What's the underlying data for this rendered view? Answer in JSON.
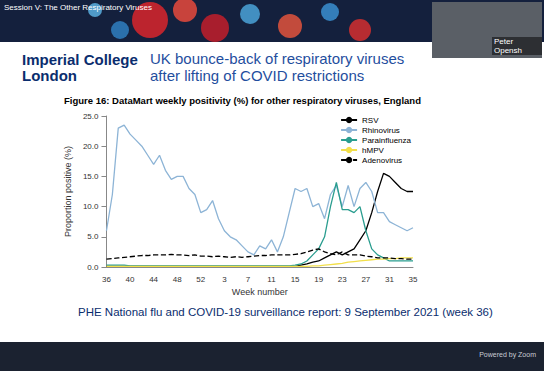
{
  "slide": {
    "session": "Session V: The Other Respiratory Viruses",
    "institution": "Imperial College London",
    "title": "UK bounce-back of respiratory viruses after lifting of COVID restrictions",
    "presenter": "Peter Opensh",
    "source": "PHE National flu and COVID-19 surveillance report: 9 September 2021 (week 36)",
    "footer": "Powered by Zoom"
  },
  "chart_data": {
    "type": "line",
    "title": "Figure 16: DataMart weekly positivity (%) for other respiratory viruses, England",
    "x_label": "Week number",
    "y_label": "Proportion positive (%)",
    "categories": [
      "36",
      null,
      null,
      null,
      "40",
      null,
      null,
      null,
      "44",
      null,
      null,
      null,
      "48",
      null,
      null,
      null,
      "52",
      null,
      null,
      null,
      "3",
      null,
      null,
      null,
      "7",
      null,
      null,
      null,
      "11",
      null,
      null,
      null,
      "15",
      null,
      null,
      null,
      "19",
      null,
      null,
      null,
      "23",
      null,
      null,
      null,
      "27",
      null,
      null,
      null,
      "31",
      null,
      null,
      null,
      "35"
    ],
    "ylim": [
      0,
      25
    ],
    "yticks": [
      {
        "value": 0,
        "label": "0.0"
      },
      {
        "value": 5,
        "label": "5.0"
      },
      {
        "value": 10,
        "label": "10.0"
      },
      {
        "value": 15,
        "label": "15.0"
      },
      {
        "value": 20,
        "label": "20.0"
      },
      {
        "value": 25,
        "label": "25.0"
      }
    ],
    "grid": false,
    "legend": "upper right",
    "marker": "none",
    "series": [
      {
        "name": "RSV",
        "color": "#000000",
        "line_style": "solid",
        "values": [
          0.1,
          0.1,
          0.1,
          0.1,
          0.1,
          0.1,
          0.1,
          0.1,
          0.1,
          0.1,
          0.1,
          0.1,
          0.1,
          0.1,
          0.1,
          0.1,
          0.1,
          0.1,
          0.1,
          0.1,
          0.1,
          0.1,
          0.1,
          0.1,
          0.1,
          0.1,
          0.1,
          0.1,
          0.1,
          0.1,
          0.1,
          0.1,
          0.1,
          0.3,
          0.5,
          0.8,
          1.0,
          1.5,
          2.0,
          2.5,
          2.0,
          2.5,
          3.0,
          4.5,
          6.0,
          9.0,
          12.5,
          15.5,
          15.0,
          14.0,
          13.0,
          12.5,
          12.5
        ]
      },
      {
        "name": "Rhinovirus",
        "color": "#8db4d6",
        "line_style": "solid",
        "values": [
          6.0,
          12.0,
          23.0,
          23.5,
          22.0,
          21.0,
          20.0,
          18.5,
          17.0,
          18.5,
          16.0,
          14.5,
          15.0,
          15.0,
          13.0,
          12.0,
          9.0,
          9.5,
          11.0,
          8.0,
          6.0,
          5.0,
          4.5,
          3.5,
          2.5,
          2.0,
          3.5,
          3.0,
          4.5,
          2.5,
          5.0,
          9.0,
          13.0,
          12.5,
          13.0,
          10.0,
          10.5,
          8.0,
          12.0,
          13.5,
          10.0,
          13.5,
          10.0,
          13.0,
          14.0,
          12.5,
          9.0,
          9.0,
          7.5,
          7.0,
          6.5,
          6.0,
          6.5
        ]
      },
      {
        "name": "Parainfluenza",
        "color": "#2a9d8f",
        "line_style": "solid",
        "values": [
          0.3,
          0.3,
          0.3,
          0.3,
          0.2,
          0.2,
          0.2,
          0.2,
          0.2,
          0.2,
          0.2,
          0.2,
          0.2,
          0.2,
          0.2,
          0.2,
          0.2,
          0.2,
          0.2,
          0.2,
          0.2,
          0.2,
          0.2,
          0.2,
          0.2,
          0.2,
          0.2,
          0.2,
          0.2,
          0.2,
          0.2,
          0.2,
          0.3,
          0.5,
          1.0,
          2.0,
          3.0,
          5.0,
          10.0,
          14.0,
          9.5,
          9.5,
          9.0,
          10.0,
          6.0,
          3.0,
          2.0,
          1.5,
          1.0,
          1.0,
          1.0,
          1.0,
          1.0
        ]
      },
      {
        "name": "hMPV",
        "color": "#f2df4a",
        "line_style": "solid",
        "values": [
          0.1,
          0.1,
          0.1,
          0.1,
          0.1,
          0.1,
          0.1,
          0.1,
          0.1,
          0.1,
          0.1,
          0.1,
          0.1,
          0.1,
          0.1,
          0.1,
          0.1,
          0.1,
          0.1,
          0.1,
          0.1,
          0.1,
          0.1,
          0.1,
          0.1,
          0.1,
          0.1,
          0.1,
          0.1,
          0.1,
          0.1,
          0.1,
          0.1,
          0.1,
          0.1,
          0.2,
          0.2,
          0.3,
          0.4,
          0.5,
          0.6,
          0.8,
          0.9,
          1.0,
          1.1,
          1.2,
          1.3,
          1.3,
          1.4,
          1.4,
          1.5,
          1.5,
          1.5
        ]
      },
      {
        "name": "Adenovirus",
        "color": "#000000",
        "line_style": "dashed",
        "values": [
          1.3,
          1.4,
          1.5,
          1.6,
          1.7,
          1.8,
          1.9,
          1.9,
          2.0,
          2.0,
          2.0,
          2.1,
          2.0,
          2.0,
          1.9,
          2.0,
          1.8,
          1.8,
          1.7,
          1.8,
          1.7,
          1.6,
          1.7,
          1.6,
          1.7,
          1.8,
          1.9,
          1.9,
          2.0,
          2.0,
          2.0,
          2.0,
          2.1,
          2.2,
          2.5,
          2.8,
          3.0,
          2.5,
          2.2,
          2.0,
          2.5,
          2.0,
          2.0,
          2.0,
          1.8,
          1.7,
          1.5,
          1.5,
          1.5,
          1.4,
          1.4,
          1.3,
          1.3
        ]
      }
    ]
  }
}
